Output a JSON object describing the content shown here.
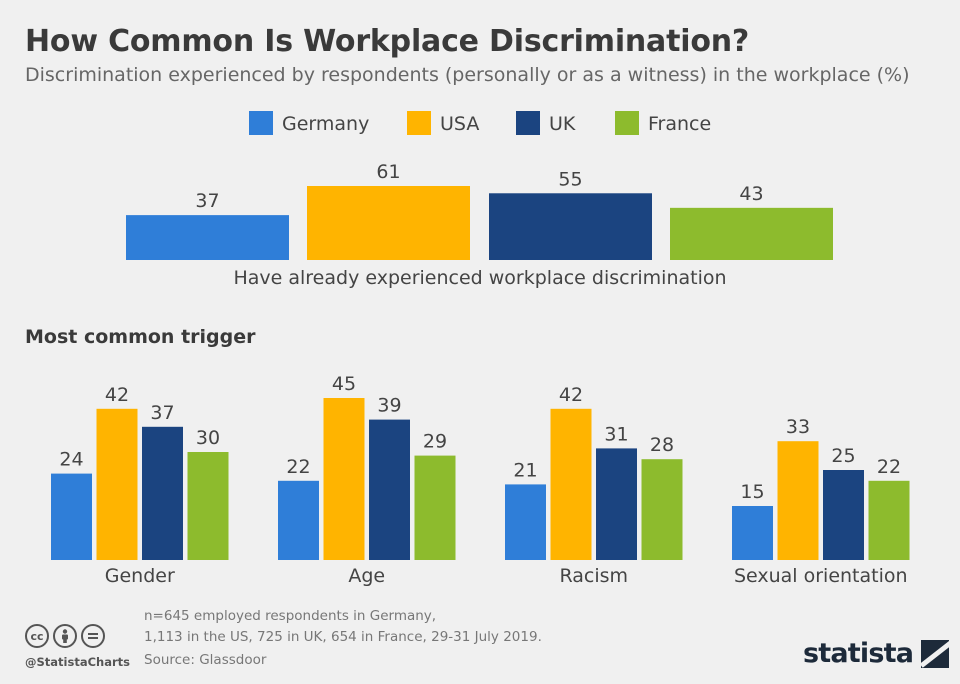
{
  "title": "How Common Is Workplace Discrimination?",
  "subtitle": "Discrimination experienced by respondents (personally or as a witness) in the workplace (%)",
  "colors": {
    "Germany": "#2f7ed8",
    "USA": "#ffb400",
    "UK": "#1b4480",
    "France": "#8dbb2d"
  },
  "chart_data": [
    {
      "type": "bar",
      "categories": [
        "Have already experienced workplace discrimination"
      ],
      "series": [
        {
          "name": "Germany",
          "values": [
            37
          ]
        },
        {
          "name": "USA",
          "values": [
            61
          ]
        },
        {
          "name": "UK",
          "values": [
            55
          ]
        },
        {
          "name": "France",
          "values": [
            43
          ]
        }
      ],
      "title": "",
      "ylim": [
        0,
        61
      ],
      "legend": "top-center",
      "grid": false
    },
    {
      "type": "bar",
      "title": "Most common trigger",
      "categories": [
        "Gender",
        "Age",
        "Racism",
        "Sexual orientation"
      ],
      "series": [
        {
          "name": "Germany",
          "values": [
            24,
            22,
            21,
            15
          ]
        },
        {
          "name": "USA",
          "values": [
            42,
            45,
            42,
            33
          ]
        },
        {
          "name": "UK",
          "values": [
            37,
            39,
            31,
            25
          ]
        },
        {
          "name": "France",
          "values": [
            30,
            29,
            28,
            22
          ]
        }
      ],
      "ylim": [
        0,
        45
      ],
      "grid": false
    }
  ],
  "footer": {
    "note_line1": "n=645 employed respondents in Germany,",
    "note_line2": "1,113 in the US, 725 in UK, 654 in France, 29-31 July 2019.",
    "source": "Source: Glassdoor",
    "handle": "@StatistaCharts",
    "brand": "statista"
  },
  "icons": [
    "cc-icon",
    "person-icon",
    "equals-icon",
    "statista-logo-icon"
  ]
}
